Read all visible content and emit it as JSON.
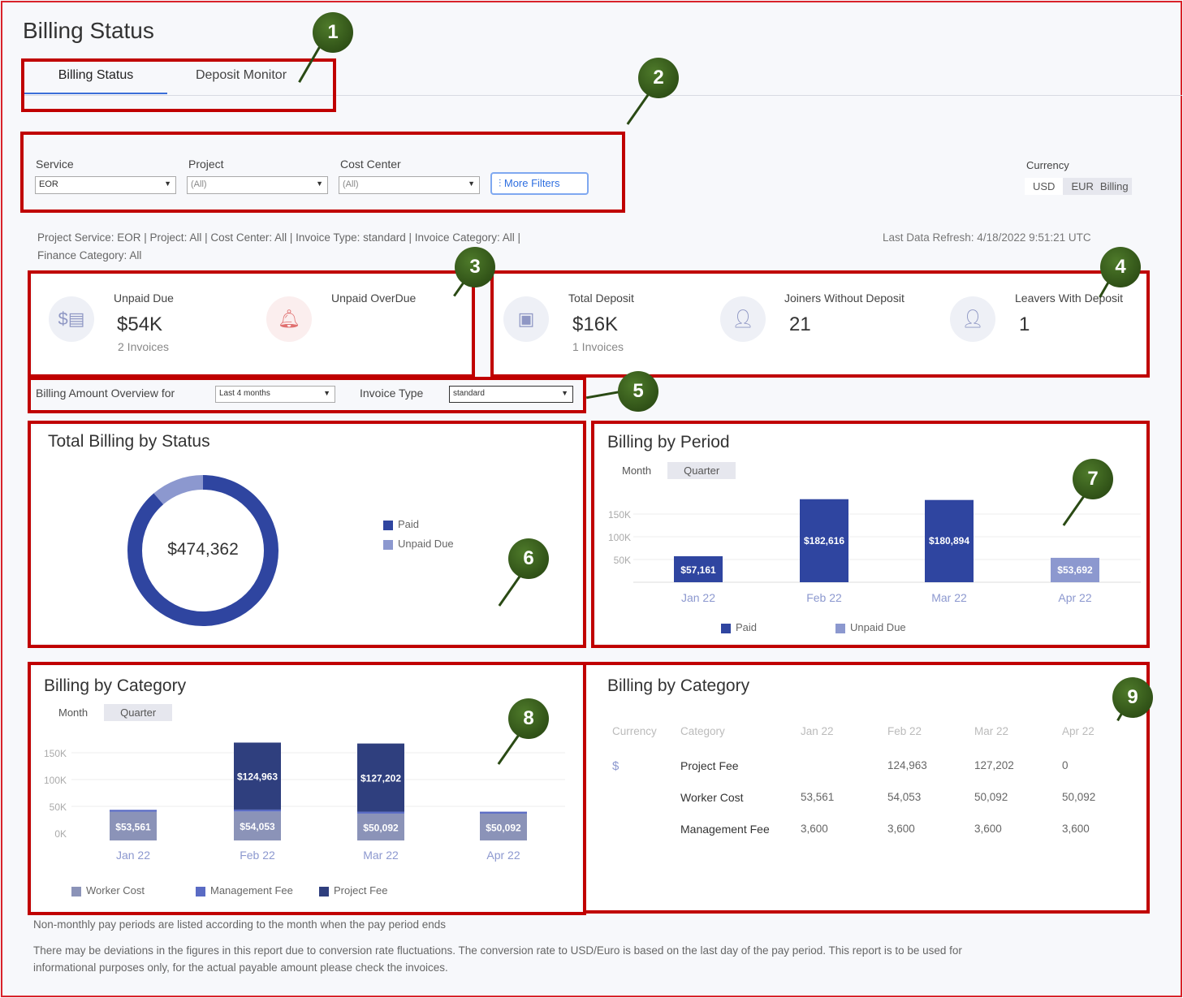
{
  "page_title": "Billing Status",
  "tabs": [
    {
      "label": "Billing Status",
      "active": true
    },
    {
      "label": "Deposit Monitor",
      "active": false
    }
  ],
  "filters": {
    "service": {
      "label": "Service",
      "value": "EOR"
    },
    "project": {
      "label": "Project",
      "value": "(All)"
    },
    "cost_center": {
      "label": "Cost Center",
      "value": "(All)"
    },
    "more_filters": "More Filters"
  },
  "currency": {
    "label": "Currency",
    "options": [
      "USD",
      "EUR",
      "Billing"
    ],
    "selected": "USD"
  },
  "summary_line1": "Project Service: EOR | Project: All | Cost Center: All | Invoice Type: standard | Invoice Category: All |",
  "summary_line2": "Finance Category: All",
  "last_refresh": "Last Data Refresh: 4/18/2022 9:51:21 UTC",
  "kpis": {
    "unpaid_due": {
      "label": "Unpaid Due",
      "value": "$54K",
      "sub": "2 Invoices"
    },
    "unpaid_overdue": {
      "label": "Unpaid OverDue"
    },
    "total_deposit": {
      "label": "Total Deposit",
      "value": "$16K",
      "sub": "1 Invoices"
    },
    "joiners": {
      "label": "Joiners Without Deposit",
      "value": "21"
    },
    "leavers": {
      "label": "Leavers With Deposit",
      "value": "1"
    }
  },
  "overview": {
    "label": "Billing Amount Overview for",
    "period": "Last 4 months",
    "invoice_type_label": "Invoice Type",
    "invoice_type": "standard"
  },
  "status_chart": {
    "title": "Total Billing by Status",
    "total": "$474,362",
    "legend": [
      "Paid",
      "Unpaid Due"
    ],
    "paid": 420670,
    "unpaid": 53692,
    "colors": {
      "paid": "#2f45a0",
      "unpaid": "#8c98cf"
    }
  },
  "period_chart": {
    "title": "Billing by Period",
    "toggle": [
      "Month",
      "Quarter"
    ],
    "yticks": [
      "50K",
      "100K",
      "150K"
    ],
    "categories": [
      "Jan 22",
      "Feb 22",
      "Mar 22",
      "Apr 22"
    ],
    "bars": [
      {
        "value": 57161,
        "label": "$57,161",
        "status": "Paid"
      },
      {
        "value": 182616,
        "label": "$182,616",
        "status": "Paid"
      },
      {
        "value": 180894,
        "label": "$180,894",
        "status": "Paid"
      },
      {
        "value": 53692,
        "label": "$53,692",
        "status": "Unpaid Due"
      }
    ],
    "legend": [
      "Paid",
      "Unpaid Due"
    ]
  },
  "category_chart": {
    "title": "Billing by Category",
    "toggle": [
      "Month",
      "Quarter"
    ],
    "yticks": [
      "0K",
      "50K",
      "100K",
      "150K"
    ],
    "categories": [
      "Jan 22",
      "Feb 22",
      "Mar 22",
      "Apr 22"
    ],
    "series": [
      {
        "name": "Worker Cost",
        "values": [
          53561,
          54053,
          50092,
          50092
        ],
        "labels": [
          "$53,561",
          "$54,053",
          "$50,092",
          "$50,092"
        ],
        "color": "#8b93b8"
      },
      {
        "name": "Management Fee",
        "values": [
          3600,
          3600,
          3600,
          3600
        ],
        "labels": [
          "",
          "",
          "",
          ""
        ],
        "color": "#5a6bc4"
      },
      {
        "name": "Project Fee",
        "values": [
          0,
          124963,
          127202,
          0
        ],
        "labels": [
          "",
          "$124,963",
          "$127,202",
          ""
        ],
        "color": "#2f3f7e"
      }
    ]
  },
  "category_table": {
    "title": "Billing by Category",
    "headers": [
      "Currency",
      "Category",
      "Jan 22",
      "Feb 22",
      "Mar 22",
      "Apr 22"
    ],
    "currency_symbol": "$",
    "rows": [
      [
        "Project Fee",
        "",
        "124,963",
        "127,202",
        "0"
      ],
      [
        "Worker Cost",
        "53,561",
        "54,053",
        "50,092",
        "50,092"
      ],
      [
        "Management Fee",
        "3,600",
        "3,600",
        "3,600",
        "3,600"
      ]
    ]
  },
  "footnote1": "Non-monthly pay periods are listed according to the month when the pay period ends",
  "footnote2": "There may be deviations in the figures in this report due to conversion rate fluctuations. The conversion rate to USD/Euro is based on the last day of the pay period. This report is to be used for",
  "footnote3": "informational purposes only, for the actual payable amount please check the invoices.",
  "callouts": [
    "1",
    "2",
    "3",
    "4",
    "5",
    "6",
    "7",
    "8",
    "9"
  ]
}
